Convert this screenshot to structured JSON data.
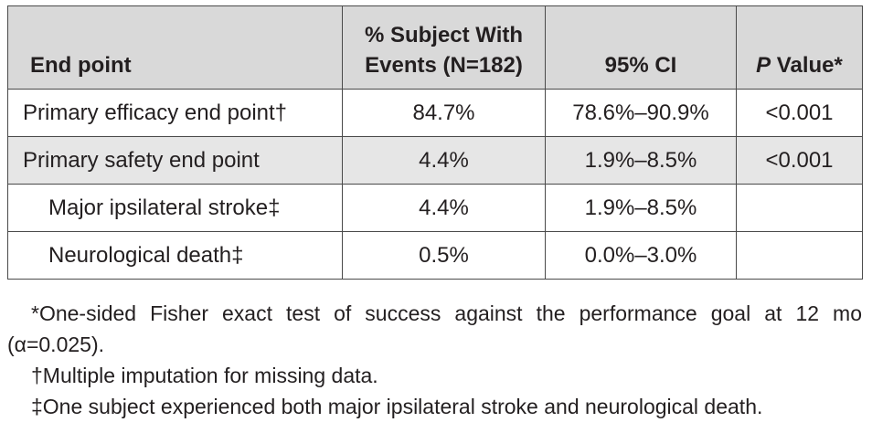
{
  "table": {
    "headers": {
      "endpoint": "End point",
      "subjects_line1": "% Subject With",
      "subjects_line2": "Events (N=182)",
      "ci": "95% CI",
      "p_letter": "P",
      "p_rest": " Value*"
    },
    "rows": [
      {
        "endpoint": "Primary efficacy end point†",
        "subjects": "84.7%",
        "ci": "78.6%–90.9%",
        "p": "<0.001"
      },
      {
        "endpoint": "Primary safety end point",
        "subjects": "4.4%",
        "ci": "1.9%–8.5%",
        "p": "<0.001"
      },
      {
        "endpoint": "Major ipsilateral stroke‡",
        "subjects": "4.4%",
        "ci": "1.9%–8.5%",
        "p": ""
      },
      {
        "endpoint": "Neurological death‡",
        "subjects": "0.5%",
        "ci": "0.0%–3.0%",
        "p": ""
      }
    ]
  },
  "footnotes": [
    "*One-sided Fisher exact test of success against the performance goal at 12 mo (α=0.025).",
    "†Multiple imputation for missing data.",
    "‡One subject experienced both major ipsilateral stroke and neurological death."
  ]
}
